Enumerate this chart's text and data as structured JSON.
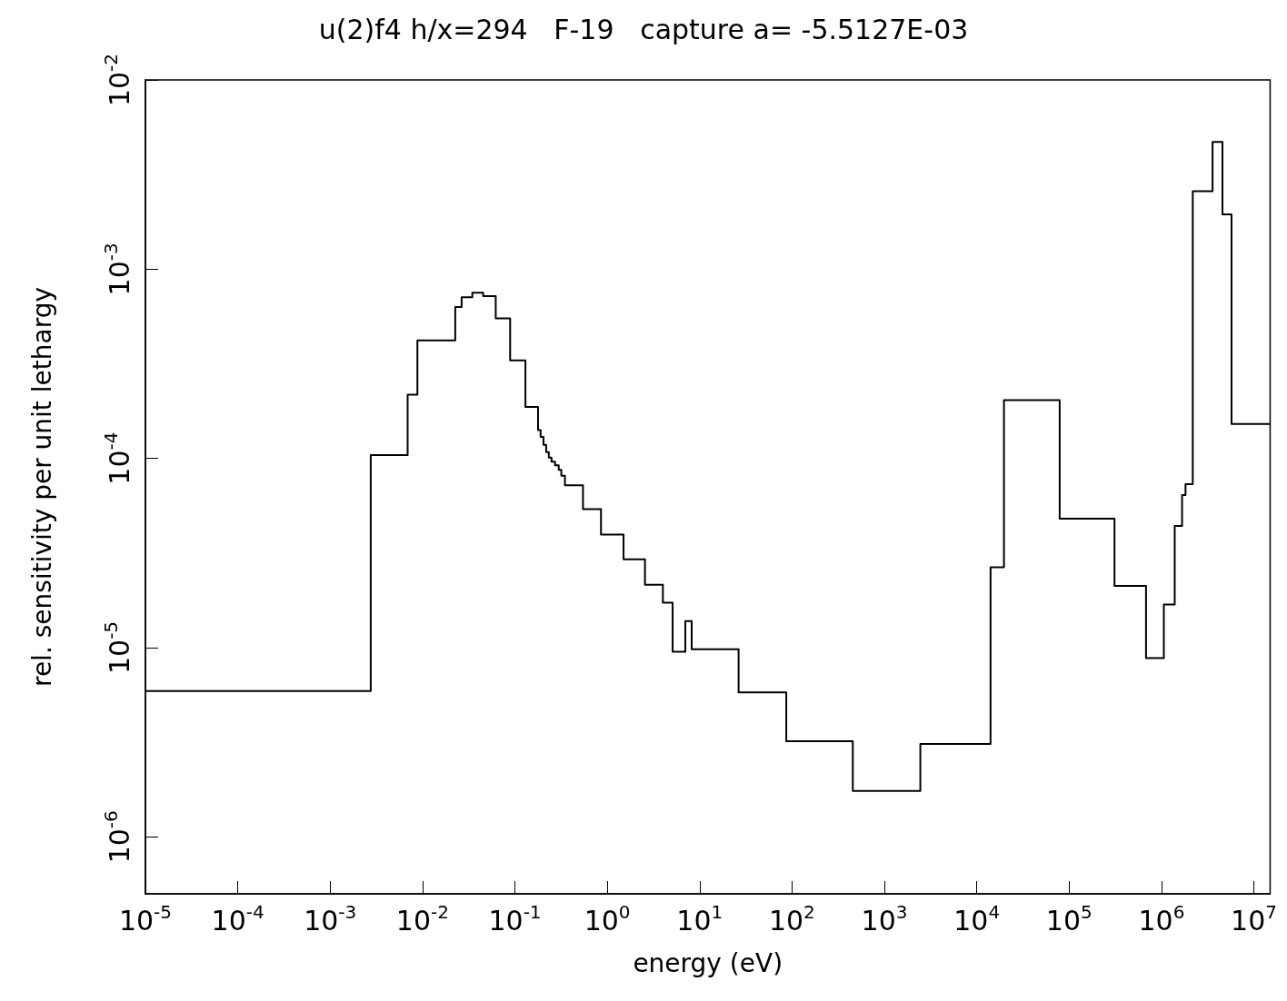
{
  "chart_data": {
    "type": "step",
    "title": "u(2)f4 h/x=294   F-19   capture a= -5.5127E-03",
    "xlabel": "energy (eV)",
    "ylabel": "rel. sensitivity per unit lethargy",
    "log": "xy",
    "grid": false,
    "marker": "none",
    "line_style": "solid",
    "series": [
      {
        "color": "#000000",
        "x": [
          1e-05,
          0.00275,
          0.0069,
          0.0088,
          0.0226,
          0.0265,
          0.0346,
          0.0453,
          0.062,
          0.0888,
          0.13,
          0.178,
          0.19,
          0.204,
          0.218,
          0.233,
          0.249,
          0.272,
          0.298,
          0.318,
          0.348,
          0.546,
          0.855,
          1.5,
          2.56,
          4.0,
          5.1,
          7.0,
          8.2,
          26.4,
          86.7,
          455,
          2450,
          14100,
          19700,
          79000,
          310000,
          680000,
          1060000,
          1390000,
          1670000,
          1820000,
          2180000,
          3570000,
          4570000,
          5730000,
          15000000
        ],
        "values": [
          5.9e-06,
          0.000104,
          0.000217,
          0.00042,
          0.00063,
          0.00071,
          0.00075,
          0.00072,
          0.00055,
          0.00033,
          0.000187,
          0.000141,
          0.00013,
          0.000118,
          0.000108,
          0.000101,
          9.6e-05,
          9.2e-05,
          8.7e-05,
          8.1e-05,
          7.2e-05,
          5.4e-05,
          3.96e-05,
          2.93e-05,
          2.15e-05,
          1.73e-05,
          9.5e-06,
          1.38e-05,
          9.8e-06,
          5.8e-06,
          3.2e-06,
          1.75e-06,
          3.1e-06,
          2.66e-05,
          0.000203,
          4.8e-05,
          2.12e-05,
          8.8e-06,
          1.69e-05,
          4.4e-05,
          6.4e-05,
          7.3e-05,
          0.00258,
          0.0047,
          0.00195,
          0.000152,
          0.000152
        ]
      }
    ],
    "xlim": [
      1e-05,
      15000000.0
    ],
    "ylim": [
      5e-07,
      0.01
    ],
    "xticks": [
      {
        "value": 1e-05,
        "label": "10$^{-5}$"
      },
      {
        "value": 0.0001,
        "label": "10$^{-4}$"
      },
      {
        "value": 0.001,
        "label": "10$^{-3}$"
      },
      {
        "value": 0.01,
        "label": "10$^{-2}$"
      },
      {
        "value": 0.1,
        "label": "10$^{-1}$"
      },
      {
        "value": 1,
        "label": "10$^{0}$"
      },
      {
        "value": 10,
        "label": "10$^{1}$"
      },
      {
        "value": 100,
        "label": "10$^{2}$"
      },
      {
        "value": 1000,
        "label": "10$^{3}$"
      },
      {
        "value": 10000,
        "label": "10$^{4}$"
      },
      {
        "value": 100000,
        "label": "10$^{5}$"
      },
      {
        "value": 1000000,
        "label": "10$^{6}$"
      },
      {
        "value": 10000000,
        "label": "10$^{7}$"
      }
    ],
    "yticks": [
      {
        "value": 1e-06,
        "label": "10$^{-6}$"
      },
      {
        "value": 1e-05,
        "label": "10$^{-5}$"
      },
      {
        "value": 0.0001,
        "label": "10$^{-4}$"
      },
      {
        "value": 0.001,
        "label": "10$^{-3}$"
      },
      {
        "value": 0.01,
        "label": "10$^{-2}$"
      }
    ]
  }
}
